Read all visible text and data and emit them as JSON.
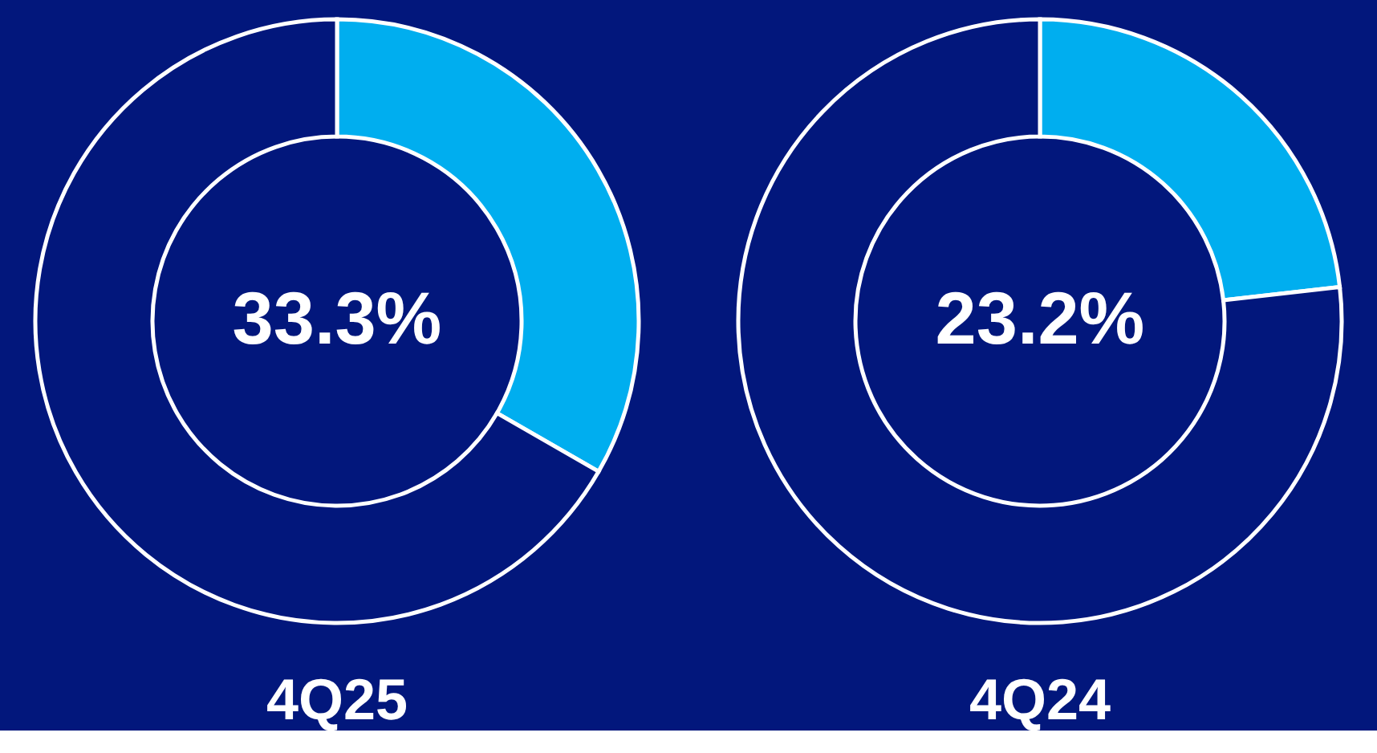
{
  "chart_data": [
    {
      "type": "donut",
      "title": "4Q25",
      "categories": [
        null,
        null
      ],
      "values": [
        33.3,
        66.7
      ],
      "colors": [
        "#00aeef",
        "#02177c"
      ],
      "value_labels": [
        "33.3%",
        null
      ]
    },
    {
      "type": "donut",
      "title": "4Q24",
      "categories": [
        null,
        null
      ],
      "values": [
        23.2,
        76.8
      ],
      "colors": [
        "#00aeef",
        "#02177c"
      ],
      "value_labels": [
        "23.2%",
        null
      ]
    }
  ]
}
